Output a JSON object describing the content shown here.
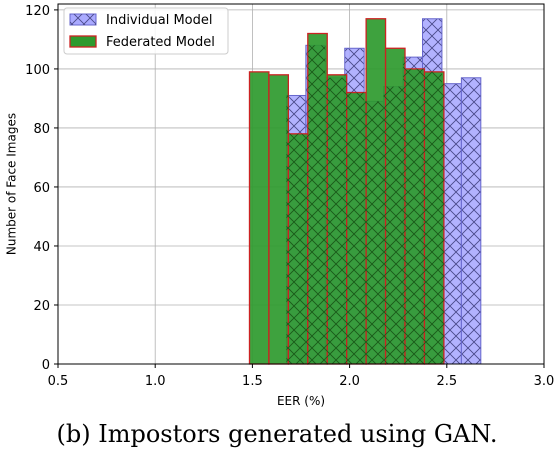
{
  "caption": "(b) Impostors generated using GAN.",
  "colors": {
    "individual_fill": "#aaaaff",
    "individual_edge": "#6666cc",
    "individual_hatch": "#4a4a8a",
    "federated_fill": "#2e9a2e",
    "federated_edge": "#cc2222",
    "federated_hatch": "#1a5a1a",
    "grid": "#b0b0b0"
  },
  "chart_data": {
    "type": "bar",
    "title": "",
    "xlabel": "EER (%)",
    "ylabel": "Number of Face Images",
    "xlim": [
      0.5,
      3.0
    ],
    "ylim": [
      0,
      122
    ],
    "xticks": [
      "0.5",
      "1.0",
      "1.5",
      "2.0",
      "2.5",
      "3.0"
    ],
    "yticks": [
      "0",
      "20",
      "40",
      "60",
      "80",
      "100",
      "120"
    ],
    "grid": true,
    "legend_position": "top-left",
    "series": [
      {
        "name": "Individual Model",
        "style": "hatched",
        "bins": [
          [
            1.675,
            1.775,
            91
          ],
          [
            1.775,
            1.875,
            108
          ],
          [
            1.875,
            1.975,
            97
          ],
          [
            1.975,
            2.075,
            107
          ],
          [
            2.075,
            2.175,
            89
          ],
          [
            2.175,
            2.275,
            94
          ],
          [
            2.275,
            2.375,
            104
          ],
          [
            2.375,
            2.475,
            117
          ],
          [
            2.475,
            2.575,
            95
          ],
          [
            2.575,
            2.675,
            97
          ]
        ]
      },
      {
        "name": "Federated Model",
        "style": "solid",
        "bins": [
          [
            1.485,
            1.585,
            99
          ],
          [
            1.585,
            1.685,
            98
          ],
          [
            1.685,
            1.785,
            78
          ],
          [
            1.785,
            1.885,
            112
          ],
          [
            1.885,
            1.985,
            98
          ],
          [
            1.985,
            2.085,
            92
          ],
          [
            2.085,
            2.185,
            117
          ],
          [
            2.185,
            2.285,
            107
          ],
          [
            2.285,
            2.385,
            100
          ],
          [
            2.385,
            2.485,
            99
          ]
        ]
      }
    ]
  }
}
